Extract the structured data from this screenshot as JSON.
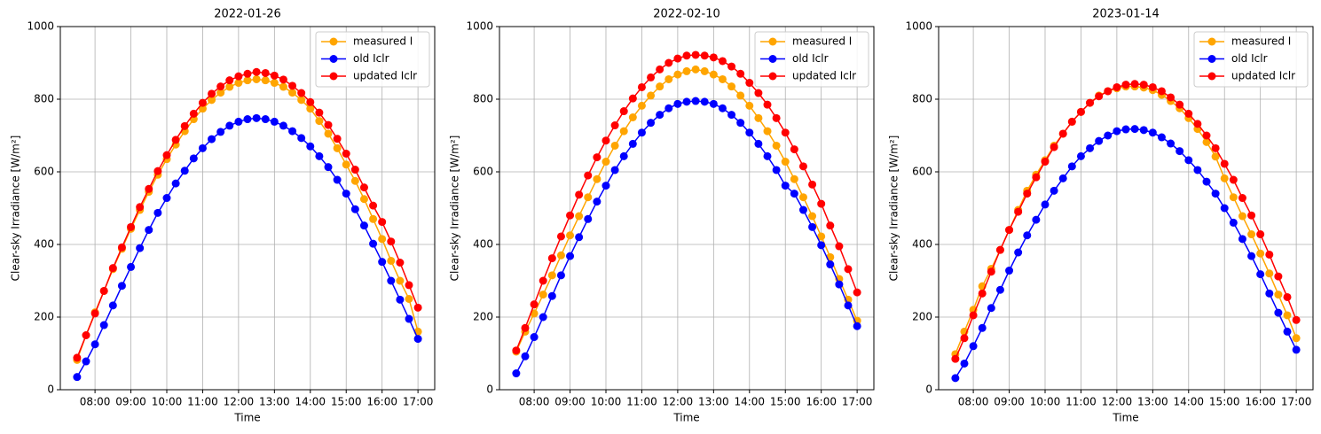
{
  "chart_data": [
    {
      "type": "line",
      "title": "2022-01-26",
      "xlabel": "Time",
      "ylabel": "Clear-sky Irradiance [W/m²]",
      "x": [
        "07:30",
        "07:45",
        "08:00",
        "08:15",
        "08:30",
        "08:45",
        "09:00",
        "09:15",
        "09:30",
        "09:45",
        "10:00",
        "10:15",
        "10:30",
        "10:45",
        "11:00",
        "11:15",
        "11:30",
        "11:45",
        "12:00",
        "12:15",
        "12:30",
        "12:45",
        "13:00",
        "13:15",
        "13:30",
        "13:45",
        "14:00",
        "14:15",
        "14:30",
        "14:45",
        "15:00",
        "15:15",
        "15:30",
        "15:45",
        "16:00",
        "16:15",
        "16:30",
        "16:45",
        "17:00"
      ],
      "series": [
        {
          "name": "measured I",
          "color": "orange",
          "values": [
            82,
            150,
            213,
            272,
            332,
            388,
            443,
            495,
            545,
            592,
            635,
            675,
            712,
            745,
            774,
            798,
            818,
            834,
            845,
            852,
            855,
            852,
            845,
            834,
            818,
            798,
            774,
            740,
            705,
            665,
            620,
            575,
            525,
            470,
            415,
            355,
            300,
            250,
            160
          ]
        },
        {
          "name": "old Iclr",
          "color": "blue",
          "values": [
            35,
            78,
            125,
            178,
            232,
            286,
            338,
            390,
            440,
            487,
            528,
            568,
            603,
            637,
            665,
            690,
            710,
            727,
            738,
            745,
            748,
            745,
            738,
            727,
            712,
            693,
            670,
            643,
            613,
            578,
            540,
            497,
            452,
            402,
            352,
            300,
            248,
            195,
            140
          ]
        },
        {
          "name": "updated Iclr",
          "color": "red",
          "values": [
            88,
            150,
            210,
            272,
            335,
            392,
            448,
            503,
            553,
            602,
            646,
            688,
            726,
            760,
            790,
            815,
            835,
            852,
            863,
            870,
            875,
            872,
            865,
            854,
            837,
            817,
            792,
            763,
            729,
            691,
            650,
            606,
            557,
            507,
            462,
            408,
            350,
            288,
            226
          ]
        }
      ],
      "xlim": [
        "07:02",
        "17:28"
      ],
      "xticks": [
        "08:00",
        "09:00",
        "10:00",
        "11:00",
        "12:00",
        "13:00",
        "14:00",
        "15:00",
        "16:00",
        "17:00"
      ],
      "ylim": [
        0,
        1000
      ],
      "yticks": [
        0,
        200,
        400,
        600,
        800,
        1000
      ],
      "grid": true,
      "legend": "upper right"
    },
    {
      "type": "line",
      "title": "2022-02-10",
      "xlabel": "Time",
      "ylabel": "Clear-sky Irradiance [W/m²]",
      "x": [
        "07:30",
        "07:45",
        "08:00",
        "08:15",
        "08:30",
        "08:45",
        "09:00",
        "09:15",
        "09:30",
        "09:45",
        "10:00",
        "10:15",
        "10:30",
        "10:45",
        "11:00",
        "11:15",
        "11:30",
        "11:45",
        "12:00",
        "12:15",
        "12:30",
        "12:45",
        "13:00",
        "13:15",
        "13:30",
        "13:45",
        "14:00",
        "14:15",
        "14:30",
        "14:45",
        "15:00",
        "15:15",
        "15:30",
        "15:45",
        "16:00",
        "16:15",
        "16:30",
        "16:45",
        "17:00"
      ],
      "series": [
        {
          "name": "measured I",
          "color": "orange",
          "values": [
            105,
            160,
            210,
            262,
            315,
            370,
            425,
            478,
            530,
            580,
            628,
            672,
            712,
            750,
            782,
            810,
            835,
            855,
            868,
            877,
            882,
            877,
            868,
            855,
            835,
            810,
            782,
            748,
            712,
            672,
            628,
            580,
            530,
            478,
            422,
            365,
            305,
            248,
            190
          ]
        },
        {
          "name": "old Iclr",
          "color": "blue",
          "values": [
            45,
            92,
            145,
            200,
            258,
            315,
            368,
            420,
            470,
            518,
            562,
            605,
            643,
            677,
            708,
            735,
            757,
            775,
            787,
            793,
            795,
            793,
            787,
            775,
            757,
            735,
            708,
            677,
            643,
            605,
            562,
            540,
            495,
            448,
            398,
            345,
            290,
            232,
            175
          ]
        },
        {
          "name": "updated Iclr",
          "color": "red",
          "values": [
            108,
            170,
            235,
            300,
            362,
            422,
            480,
            537,
            590,
            640,
            686,
            728,
            767,
            802,
            833,
            860,
            882,
            900,
            912,
            920,
            922,
            920,
            915,
            905,
            890,
            870,
            845,
            817,
            785,
            748,
            708,
            662,
            615,
            565,
            512,
            452,
            395,
            332,
            268
          ]
        }
      ],
      "xlim": [
        "07:02",
        "17:28"
      ],
      "xticks": [
        "08:00",
        "09:00",
        "10:00",
        "11:00",
        "12:00",
        "13:00",
        "14:00",
        "15:00",
        "16:00",
        "17:00"
      ],
      "ylim": [
        0,
        1000
      ],
      "yticks": [
        0,
        200,
        400,
        600,
        800,
        1000
      ],
      "grid": true,
      "legend": "upper right"
    },
    {
      "type": "line",
      "title": "2023-01-14",
      "xlabel": "Time",
      "ylabel": "Clear-sky Irradiance [W/m²]",
      "x": [
        "07:30",
        "07:45",
        "08:00",
        "08:15",
        "08:30",
        "08:45",
        "09:00",
        "09:15",
        "09:30",
        "09:45",
        "10:00",
        "10:15",
        "10:30",
        "10:45",
        "11:00",
        "11:15",
        "11:30",
        "11:45",
        "12:00",
        "12:15",
        "12:30",
        "12:45",
        "13:00",
        "13:15",
        "13:30",
        "13:45",
        "14:00",
        "14:15",
        "14:30",
        "14:45",
        "15:00",
        "15:15",
        "15:30",
        "15:45",
        "16:00",
        "16:15",
        "16:30",
        "16:45",
        "17:00"
      ],
      "series": [
        {
          "name": "measured I",
          "color": "orange",
          "values": [
            98,
            160,
            220,
            285,
            333,
            385,
            440,
            495,
            548,
            592,
            632,
            672,
            705,
            738,
            765,
            790,
            810,
            822,
            830,
            835,
            835,
            832,
            825,
            812,
            795,
            775,
            748,
            718,
            682,
            642,
            582,
            530,
            478,
            428,
            375,
            320,
            262,
            205,
            142
          ]
        },
        {
          "name": "old Iclr",
          "color": "blue",
          "values": [
            32,
            72,
            120,
            170,
            225,
            275,
            328,
            378,
            425,
            468,
            510,
            548,
            582,
            615,
            643,
            665,
            685,
            700,
            712,
            717,
            718,
            715,
            708,
            695,
            678,
            657,
            632,
            605,
            573,
            540,
            500,
            460,
            415,
            368,
            318,
            265,
            212,
            160,
            110
          ]
        },
        {
          "name": "updated Iclr",
          "color": "red",
          "values": [
            85,
            142,
            205,
            265,
            325,
            385,
            440,
            490,
            540,
            585,
            628,
            668,
            705,
            738,
            765,
            790,
            808,
            822,
            833,
            840,
            842,
            840,
            833,
            822,
            805,
            785,
            760,
            732,
            700,
            665,
            622,
            578,
            528,
            480,
            428,
            372,
            312,
            255,
            192
          ]
        }
      ],
      "xlim": [
        "07:02",
        "17:28"
      ],
      "xticks": [
        "08:00",
        "09:00",
        "10:00",
        "11:00",
        "12:00",
        "13:00",
        "14:00",
        "15:00",
        "16:00",
        "17:00"
      ],
      "ylim": [
        0,
        1000
      ],
      "yticks": [
        0,
        200,
        400,
        600,
        800,
        1000
      ],
      "grid": true,
      "legend": "upper right"
    }
  ]
}
